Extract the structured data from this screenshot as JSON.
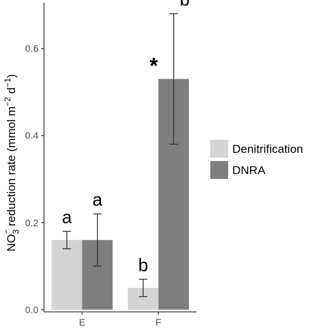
{
  "chart_data": {
    "type": "bar",
    "categories": [
      "E",
      "F"
    ],
    "series": [
      {
        "name": "Denitrification",
        "color": "#d4d4d4",
        "values": [
          0.16,
          0.05
        ],
        "err_low": [
          0.14,
          0.03
        ],
        "err_high": [
          0.18,
          0.07
        ],
        "sig_labels": [
          "a",
          "b"
        ]
      },
      {
        "name": "DNRA",
        "color": "#7f7f7f",
        "values": [
          0.16,
          0.53
        ],
        "err_low": [
          0.1,
          0.38
        ],
        "err_high": [
          0.22,
          0.68
        ],
        "sig_labels": [
          "a",
          "b"
        ]
      }
    ],
    "annotations": [
      {
        "text": "*",
        "category": "F"
      }
    ],
    "ylabel": {
      "prefix": "NO",
      "sub": "3",
      "sup": "−",
      "mid": " reduction rate (mmol m",
      "sup2": "−2",
      "mid2": " d",
      "sup3": "−1",
      "suffix": ")"
    },
    "xlabel": "",
    "y_ticks": [
      0.0,
      0.2,
      0.4,
      0.6
    ],
    "y_tick_labels": [
      "0.0",
      "0.2",
      "0.4",
      "0.6"
    ],
    "ylim": [
      -0.005,
      0.705
    ],
    "grid": false,
    "legend_position": "right"
  }
}
